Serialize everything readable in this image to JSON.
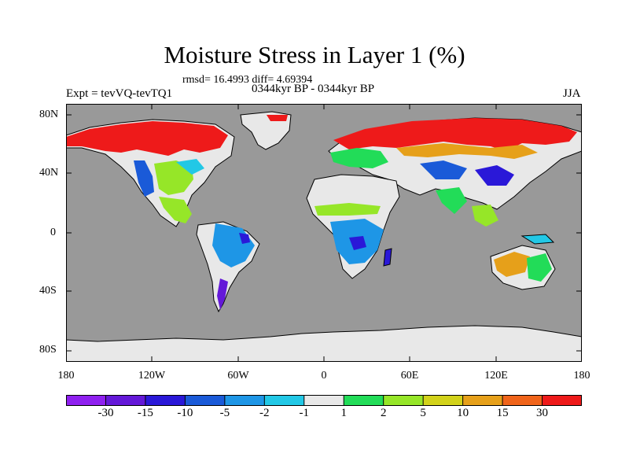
{
  "title": "Moisture Stress in Layer 1 (%)",
  "stats": "rmsd= 16.4993 diff= 4.69394",
  "experiment": "Expt = tevVQ-tevTQ1",
  "period": "0344kyr BP - 0344kyr BP",
  "season": "JJA",
  "lat_ticks": [
    "80N",
    "40N",
    "0",
    "40S",
    "80S"
  ],
  "lon_ticks": [
    "180",
    "120W",
    "60W",
    "0",
    "60E",
    "120E",
    "180"
  ],
  "colors": {
    "ocean": "#999999",
    "neutral_land": "#e8e8e8",
    "coastline": "#000000"
  },
  "colorbar": {
    "colors": [
      "#8f20f0",
      "#6418d8",
      "#2a18d8",
      "#1a5ad8",
      "#1e96e6",
      "#22c8e6",
      "#e8e8e8",
      "#22dc58",
      "#96e628",
      "#d2d21a",
      "#e6a01a",
      "#f0641a",
      "#ee1a1a"
    ],
    "labels": [
      "-30",
      "-15",
      "-10",
      "-5",
      "-2",
      "-1",
      "1",
      "2",
      "5",
      "10",
      "15",
      "30"
    ]
  }
}
